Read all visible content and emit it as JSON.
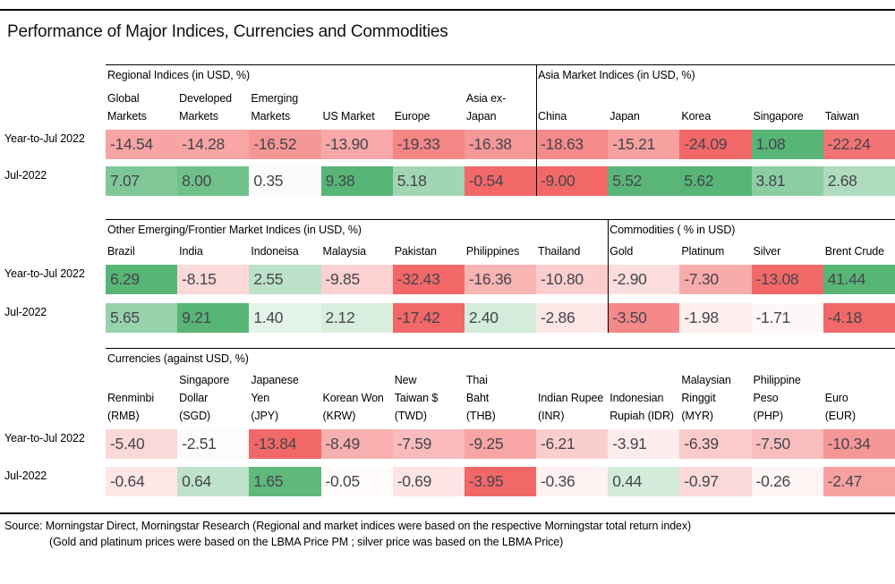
{
  "title": "Performance of Major Indices, Currencies and Commodities",
  "row_labels": [
    "Year-to-Jul 2022",
    "Jul-2022"
  ],
  "palette": {
    "max_negative": "#f26868",
    "max_positive": "#57b576",
    "neutral": "#ffffff",
    "value_text": "#45454c",
    "rule": "#000000"
  },
  "chart_data": {
    "type": "heatmap",
    "title": "Performance of Major Indices, Currencies and Commodities",
    "rows": [
      "Year-to-Jul 2022",
      "Jul-2022"
    ],
    "legend_position": "none",
    "grid": false
  },
  "sections": [
    {
      "groups": [
        {
          "heading": "Regional Indices (in USD, %)",
          "columns": [
            "Global\nMarkets",
            "Developed\nMarkets",
            "Emerging\nMarkets",
            "US Market",
            "Europe",
            "Asia ex-\nJapan"
          ],
          "rows": [
            {
              "values": [
                "-14.54",
                "-14.28",
                "-16.52",
                "-13.90",
                "-19.33",
                "-16.38"
              ],
              "colors": [
                "#f7a4a4",
                "#f7a5a5",
                "#f69797",
                "#f8a8a8",
                "#f58686",
                "#f69898"
              ]
            },
            {
              "values": [
                "7.07",
                "8.00",
                "0.35",
                "9.38",
                "5.18",
                "-0.54"
              ],
              "colors": [
                "#80c798",
                "#70c08a",
                "#f9fcfa",
                "#57b576",
                "#a2d6b3",
                "#f26868"
              ]
            }
          ]
        },
        {
          "heading": "Asia Market Indices (in USD, %)",
          "columns": [
            "China",
            "Japan",
            "Korea",
            "Singapore",
            "Taiwan"
          ],
          "rows": [
            {
              "values": [
                "-18.63",
                "-15.21",
                "-24.09",
                "1.08",
                "-22.24"
              ],
              "colors": [
                "#f58a8a",
                "#f7a0a0",
                "#f26868",
                "#57b576",
                "#f37474"
              ]
            },
            {
              "values": [
                "-9.00",
                "5.52",
                "5.62",
                "3.81",
                "2.68"
              ],
              "colors": [
                "#f26868",
                "#5ab678",
                "#57b576",
                "#8dcda2",
                "#afdcbe"
              ]
            }
          ]
        }
      ]
    },
    {
      "groups": [
        {
          "heading": "Other Emerging/Frontier Market Indices (in USD, %)",
          "columns": [
            "Brazil",
            "India",
            "Indoneisa",
            "Malaysia",
            "Pakistan",
            "Philippines",
            "Thailand"
          ],
          "rows": [
            {
              "values": [
                "6.29",
                "-8.15",
                "2.55",
                "-9.85",
                "-32.43",
                "-16.36",
                "-10.80"
              ],
              "colors": [
                "#57b576",
                "#fcd9d9",
                "#bbe1c8",
                "#fbd1d1",
                "#f26868",
                "#f8b3b3",
                "#fbcdcd"
              ]
            },
            {
              "values": [
                "5.65",
                "9.21",
                "1.40",
                "2.12",
                "-17.42",
                "2.40",
                "-2.86"
              ],
              "colors": [
                "#98d2ab",
                "#57b576",
                "#e5f4ea",
                "#d8eedf",
                "#f26868",
                "#d3ecdb",
                "#fde6e6"
              ]
            }
          ]
        },
        {
          "heading": "Commodities ( % in USD)",
          "columns": [
            "Gold",
            "Platinum",
            "Silver",
            "Brent Crude"
          ],
          "rows": [
            {
              "values": [
                "-2.90",
                "-7.30",
                "-13.08",
                "41.44"
              ],
              "colors": [
                "#fcdddd",
                "#f8abab",
                "#f26868",
                "#57b576"
              ]
            },
            {
              "values": [
                "-3.50",
                "-1.98",
                "-1.71",
                "-4.18"
              ],
              "colors": [
                "#f58888",
                "#feefef",
                "#fef7f7",
                "#f26868"
              ]
            }
          ]
        }
      ]
    },
    {
      "groups": [
        {
          "heading": "Currencies (against USD, %)",
          "columns": [
            "Renminbi\n(RMB)",
            "Singapore\nDollar\n(SGD)",
            "Japanese\nYen\n(JPY)",
            "Korean Won\n(KRW)",
            "New\nTaiwan $\n(TWD)",
            "Thai\nBaht\n(THB)",
            "Indian Rupee\n(INR)",
            "Indonesian\nRupiah (IDR)",
            "Malaysian\nRinggit\n(MYR)",
            "Philippine\nPeso\n(PHP)",
            "Euro\n(EUR)"
          ],
          "rows": [
            {
              "values": [
                "-5.40",
                "-2.51",
                "-13.84",
                "-8.49",
                "-7.59",
                "-9.25",
                "-6.21",
                "-3.91",
                "-6.39",
                "-7.50",
                "-10.34"
              ],
              "colors": [
                "#fcd9d9",
                "#fefbfb",
                "#f26868",
                "#f8afaf",
                "#f9bbbb",
                "#f7a5a5",
                "#fbcece",
                "#fdecec",
                "#fbcbcb",
                "#f9bdbd",
                "#f69797"
              ]
            },
            {
              "values": [
                "-0.64",
                "0.64",
                "1.65",
                "-0.05",
                "-0.69",
                "-3.95",
                "-0.36",
                "0.44",
                "-0.97",
                "-0.26",
                "-2.47"
              ],
              "colors": [
                "#fde7e7",
                "#bee2ca",
                "#5fb97b",
                "#fffbfb",
                "#fde5e5",
                "#f26868",
                "#fef1f1",
                "#d2ebda",
                "#fcdada",
                "#fef5f5",
                "#f7a1a1"
              ]
            }
          ]
        }
      ]
    }
  ],
  "footer": {
    "line1": "Source: Morningstar Direct, Morningstar Research (Regional and market indices were based on the respective Morningstar total return index)",
    "line2": "(Gold and platinum prices were based on the LBMA Price PM ; silver price was based on the LBMA Price)"
  }
}
